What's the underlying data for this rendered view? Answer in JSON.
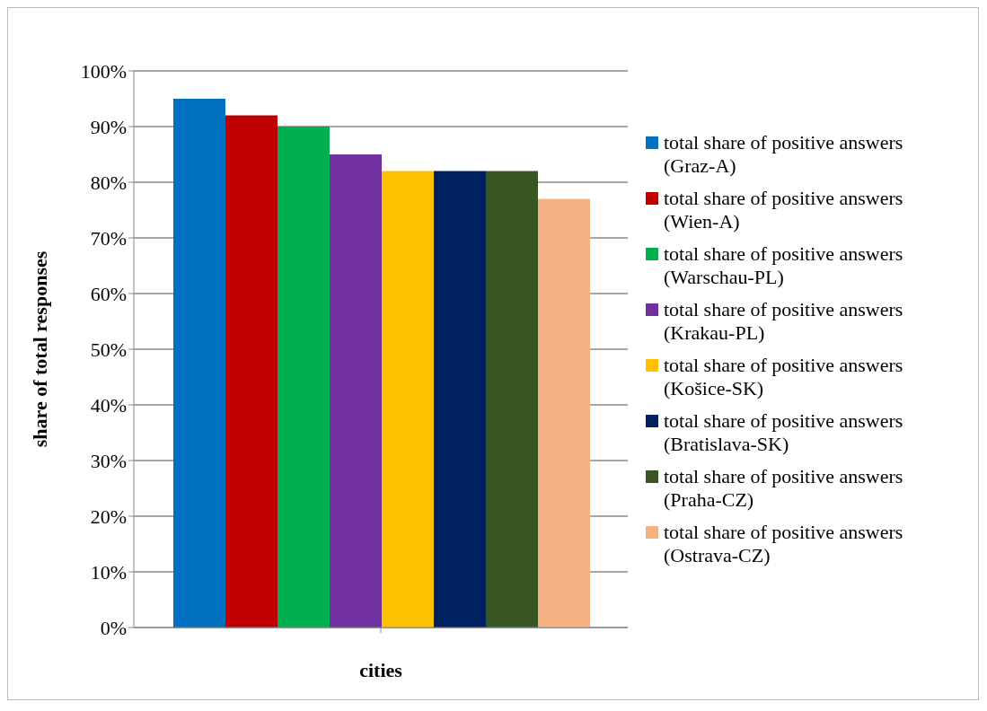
{
  "chart_data": {
    "type": "bar",
    "xlabel": "cities",
    "ylabel": "share of total responses",
    "categories": [
      null
    ],
    "series": [
      {
        "name": "total share of positive answers (Graz-A)",
        "color": "#0070c0",
        "values": [
          95
        ]
      },
      {
        "name": "total share of positive answers (Wien-A)",
        "color": "#c00000",
        "values": [
          92
        ]
      },
      {
        "name": "total share of positive answers (Warschau-PL)",
        "color": "#00b050",
        "values": [
          90
        ]
      },
      {
        "name": "total share of positive answers (Krakau-PL)",
        "color": "#7030a0",
        "values": [
          85
        ]
      },
      {
        "name": "total share of positive answers (Košice-SK)",
        "color": "#ffc000",
        "values": [
          82
        ]
      },
      {
        "name": "total share of positive answers (Bratislava-SK)",
        "color": "#002060",
        "values": [
          82
        ]
      },
      {
        "name": "total share of positive answers (Praha-CZ)",
        "color": "#375623",
        "values": [
          82
        ]
      },
      {
        "name": "total share of positive answers (Ostrava-CZ)",
        "color": "#f4b183",
        "values": [
          77
        ]
      }
    ],
    "ylim": [
      0,
      100
    ],
    "yticks": [
      {
        "value": 0,
        "label": "0%"
      },
      {
        "value": 10,
        "label": "10%"
      },
      {
        "value": 20,
        "label": "20%"
      },
      {
        "value": 30,
        "label": "30%"
      },
      {
        "value": 40,
        "label": "40%"
      },
      {
        "value": 50,
        "label": "50%"
      },
      {
        "value": 60,
        "label": "60%"
      },
      {
        "value": 70,
        "label": "70%"
      },
      {
        "value": 80,
        "label": "80%"
      },
      {
        "value": 90,
        "label": "90%"
      },
      {
        "value": 100,
        "label": "100%"
      }
    ],
    "grid": "y",
    "legend": "right"
  }
}
